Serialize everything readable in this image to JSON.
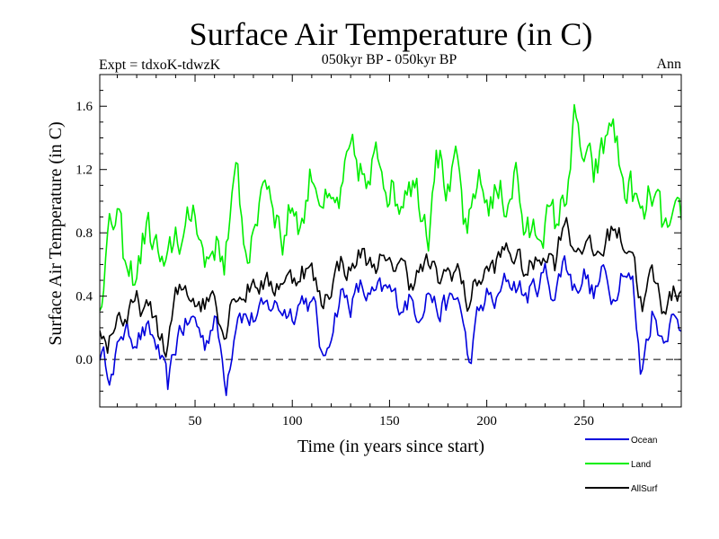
{
  "chart_data": {
    "type": "line",
    "title": "Surface Air Temperature (in C)",
    "subtitle_left": "Expt = tdxoK-tdwzK",
    "subtitle_center": "050kyr BP - 050kyr BP",
    "subtitle_right": "Ann",
    "xlabel": "Time (in years since start)",
    "ylabel": "Surface Air Temperature (in C)",
    "xlim": [
      1,
      300
    ],
    "ylim": [
      -0.3,
      1.8
    ],
    "xticks": [
      50,
      100,
      150,
      200,
      250
    ],
    "yticks": [
      0.0,
      0.4,
      0.8,
      1.2,
      1.6
    ],
    "ytick_labels": [
      "0.0",
      "0.4",
      "0.8",
      "1.2",
      "1.6"
    ],
    "zero_line": "dashed",
    "legend_position": "bottom-right",
    "series": [
      {
        "name": "Ocean",
        "color": "#0000dd",
        "anchors": [
          [
            1,
            0.05
          ],
          [
            8,
            -0.1
          ],
          [
            12,
            0.18
          ],
          [
            18,
            0.15
          ],
          [
            25,
            0.17
          ],
          [
            30,
            0.1
          ],
          [
            36,
            -0.18
          ],
          [
            42,
            0.2
          ],
          [
            50,
            0.25
          ],
          [
            55,
            0.1
          ],
          [
            60,
            0.28
          ],
          [
            66,
            -0.15
          ],
          [
            72,
            0.33
          ],
          [
            78,
            0.25
          ],
          [
            85,
            0.3
          ],
          [
            90,
            0.35
          ],
          [
            95,
            0.32
          ],
          [
            100,
            0.3
          ],
          [
            106,
            0.4
          ],
          [
            112,
            0.3
          ],
          [
            116,
            -0.05
          ],
          [
            120,
            0.2
          ],
          [
            125,
            0.42
          ],
          [
            130,
            0.35
          ],
          [
            135,
            0.45
          ],
          [
            140,
            0.38
          ],
          [
            145,
            0.42
          ],
          [
            150,
            0.43
          ],
          [
            155,
            0.35
          ],
          [
            160,
            0.38
          ],
          [
            165,
            0.3
          ],
          [
            170,
            0.45
          ],
          [
            175,
            0.3
          ],
          [
            180,
            0.35
          ],
          [
            186,
            0.38
          ],
          [
            191,
            -0.05
          ],
          [
            195,
            0.25
          ],
          [
            200,
            0.4
          ],
          [
            205,
            0.35
          ],
          [
            210,
            0.5
          ],
          [
            215,
            0.48
          ],
          [
            220,
            0.4
          ],
          [
            225,
            0.45
          ],
          [
            230,
            0.55
          ],
          [
            235,
            0.4
          ],
          [
            240,
            0.65
          ],
          [
            245,
            0.45
          ],
          [
            250,
            0.55
          ],
          [
            255,
            0.4
          ],
          [
            260,
            0.55
          ],
          [
            265,
            0.4
          ],
          [
            270,
            0.6
          ],
          [
            275,
            0.48
          ],
          [
            279,
            -0.08
          ],
          [
            285,
            0.3
          ],
          [
            290,
            0.15
          ],
          [
            295,
            0.25
          ],
          [
            300,
            0.2
          ]
        ]
      },
      {
        "name": "Land",
        "color": "#00ee00",
        "anchors": [
          [
            1,
            0.4
          ],
          [
            5,
            0.75
          ],
          [
            10,
            0.9
          ],
          [
            15,
            0.5
          ],
          [
            20,
            0.55
          ],
          [
            25,
            0.85
          ],
          [
            30,
            0.7
          ],
          [
            35,
            0.5
          ],
          [
            40,
            0.8
          ],
          [
            45,
            0.75
          ],
          [
            50,
            1.0
          ],
          [
            55,
            0.6
          ],
          [
            60,
            0.75
          ],
          [
            65,
            0.65
          ],
          [
            70,
            1.0
          ],
          [
            72,
            1.23
          ],
          [
            75,
            0.75
          ],
          [
            80,
            0.7
          ],
          [
            85,
            1.2
          ],
          [
            90,
            1.05
          ],
          [
            95,
            0.75
          ],
          [
            100,
            1.0
          ],
          [
            105,
            0.85
          ],
          [
            110,
            1.2
          ],
          [
            115,
            1.05
          ],
          [
            120,
            0.9
          ],
          [
            125,
            1.0
          ],
          [
            130,
            1.28
          ],
          [
            135,
            1.2
          ],
          [
            140,
            1.0
          ],
          [
            143,
            1.38
          ],
          [
            150,
            1.1
          ],
          [
            155,
            1.0
          ],
          [
            160,
            1.2
          ],
          [
            165,
            1.05
          ],
          [
            170,
            0.85
          ],
          [
            174,
            1.42
          ],
          [
            180,
            1.05
          ],
          [
            185,
            1.2
          ],
          [
            190,
            0.7
          ],
          [
            195,
            1.15
          ],
          [
            200,
            1.0
          ],
          [
            205,
            1.05
          ],
          [
            210,
            1.0
          ],
          [
            215,
            1.2
          ],
          [
            220,
            0.75
          ],
          [
            225,
            0.8
          ],
          [
            230,
            0.9
          ],
          [
            235,
            0.85
          ],
          [
            240,
            1.0
          ],
          [
            245,
            1.48
          ],
          [
            250,
            1.25
          ],
          [
            255,
            1.15
          ],
          [
            260,
            1.3
          ],
          [
            264,
            1.55
          ],
          [
            270,
            1.1
          ],
          [
            275,
            1.05
          ],
          [
            280,
            0.85
          ],
          [
            285,
            1.05
          ],
          [
            290,
            0.85
          ],
          [
            295,
            0.75
          ],
          [
            300,
            0.9
          ]
        ]
      },
      {
        "name": "AllSurf",
        "color": "#000000",
        "anchors": [
          [
            1,
            0.15
          ],
          [
            5,
            0.1
          ],
          [
            10,
            0.28
          ],
          [
            15,
            0.25
          ],
          [
            20,
            0.35
          ],
          [
            25,
            0.3
          ],
          [
            30,
            0.25
          ],
          [
            35,
            0.02
          ],
          [
            40,
            0.38
          ],
          [
            45,
            0.45
          ],
          [
            50,
            0.4
          ],
          [
            55,
            0.35
          ],
          [
            60,
            0.45
          ],
          [
            65,
            0.15
          ],
          [
            70,
            0.45
          ],
          [
            75,
            0.4
          ],
          [
            80,
            0.5
          ],
          [
            85,
            0.48
          ],
          [
            90,
            0.45
          ],
          [
            95,
            0.52
          ],
          [
            100,
            0.5
          ],
          [
            105,
            0.58
          ],
          [
            110,
            0.55
          ],
          [
            115,
            0.35
          ],
          [
            120,
            0.48
          ],
          [
            125,
            0.62
          ],
          [
            130,
            0.55
          ],
          [
            135,
            0.68
          ],
          [
            140,
            0.6
          ],
          [
            145,
            0.63
          ],
          [
            150,
            0.55
          ],
          [
            155,
            0.65
          ],
          [
            160,
            0.5
          ],
          [
            165,
            0.55
          ],
          [
            170,
            0.6
          ],
          [
            175,
            0.5
          ],
          [
            180,
            0.55
          ],
          [
            185,
            0.58
          ],
          [
            190,
            0.35
          ],
          [
            195,
            0.5
          ],
          [
            200,
            0.55
          ],
          [
            205,
            0.6
          ],
          [
            210,
            0.7
          ],
          [
            215,
            0.65
          ],
          [
            220,
            0.55
          ],
          [
            225,
            0.6
          ],
          [
            230,
            0.7
          ],
          [
            235,
            0.62
          ],
          [
            240,
            0.92
          ],
          [
            245,
            0.7
          ],
          [
            250,
            0.75
          ],
          [
            255,
            0.65
          ],
          [
            260,
            0.7
          ],
          [
            265,
            0.85
          ],
          [
            270,
            0.75
          ],
          [
            275,
            0.7
          ],
          [
            280,
            0.3
          ],
          [
            285,
            0.55
          ],
          [
            290,
            0.35
          ],
          [
            295,
            0.4
          ],
          [
            300,
            0.45
          ]
        ]
      }
    ]
  }
}
